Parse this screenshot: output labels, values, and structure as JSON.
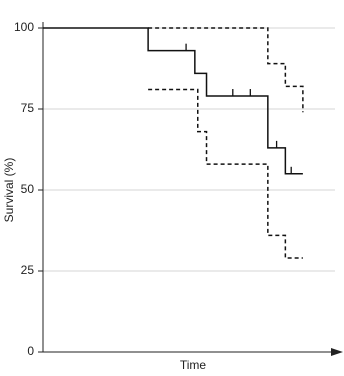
{
  "chart_data": {
    "type": "line",
    "step": "post",
    "xlabel": "Time",
    "ylabel": "Survival (%)",
    "xlim": [
      0,
      100
    ],
    "ylim": [
      0,
      100
    ],
    "yticks": [
      0,
      25,
      50,
      75,
      100
    ],
    "grid": true,
    "series": [
      {
        "color": "#111111",
        "dash": false,
        "x": [
          0,
          36,
          52,
          56,
          77,
          83,
          89
        ],
        "values": [
          100,
          93,
          86,
          79,
          63,
          55,
          55
        ]
      },
      {
        "color": "#111111",
        "dash": true,
        "x": [
          36,
          77,
          83,
          89
        ],
        "values": [
          100,
          89,
          82,
          74
        ]
      },
      {
        "color": "#111111",
        "dash": true,
        "x": [
          36,
          53,
          56,
          77,
          83,
          89
        ],
        "values": [
          81,
          68,
          58,
          36,
          29,
          29
        ]
      }
    ],
    "censored": {
      "color": "#111111",
      "x": [
        49,
        65,
        71,
        80,
        85
      ],
      "values": [
        93,
        79,
        79,
        63,
        55
      ]
    }
  }
}
